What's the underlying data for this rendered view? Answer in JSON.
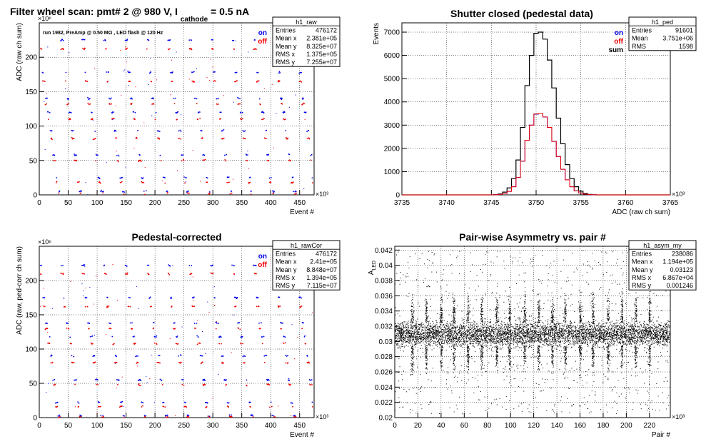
{
  "header": {
    "title_main": "Filter wheel scan: pmt#   2 @   980 V, I",
    "title_sub": "cathode",
    "title_tail": " = 0.5 nA"
  },
  "colors": {
    "on": "#0000ee",
    "off": "#ee0000",
    "sum": "#000000"
  },
  "chart_data": [
    {
      "id": "raw",
      "type": "scatter",
      "title": "",
      "annotation": "run 1982, PreAmp @ 0.50 MΩ , LED flash @  120 Hz",
      "xlabel": "Event #",
      "ylabel": "ADC (raw ch sum)",
      "x_multiplier": "×10³",
      "y_multiplier": "×10⁶",
      "xlim": [
        0,
        475
      ],
      "ylim": [
        0,
        250
      ],
      "xticks": [
        0,
        50,
        100,
        150,
        200,
        250,
        300,
        350,
        400,
        450
      ],
      "yticks": [
        0,
        50,
        100,
        150,
        200
      ],
      "grid": true,
      "legend": [
        "on",
        "off"
      ],
      "stats": {
        "name": "h1_raw",
        "rows": [
          [
            "Entries",
            "476172"
          ],
          [
            "Mean x",
            "2.381e+05"
          ],
          [
            "Mean y",
            "8.325e+07"
          ],
          [
            "RMS x",
            "1.375e+05"
          ],
          [
            "RMS y",
            "7.255e+07"
          ]
        ]
      },
      "levels_on": [
        225,
        178,
        140,
        120,
        93,
        58,
        25,
        5
      ],
      "levels_off": [
        212,
        165,
        132,
        110,
        82,
        50,
        18,
        2
      ]
    },
    {
      "id": "ped",
      "type": "line",
      "title": "Shutter closed (pedestal data)",
      "xlabel": "ADC (raw ch sum)",
      "ylabel": "Events",
      "x_multiplier": "×10³",
      "xlim": [
        3735,
        3765
      ],
      "ylim": [
        0,
        7400
      ],
      "xticks": [
        3735,
        3740,
        3745,
        3750,
        3755,
        3760,
        3765
      ],
      "yticks": [
        0,
        1000,
        2000,
        3000,
        4000,
        5000,
        6000,
        7000
      ],
      "grid": true,
      "legend": [
        "on",
        "off",
        "sum"
      ],
      "stats": {
        "name": "h1_ped",
        "rows": [
          [
            "Entries",
            "91601"
          ],
          [
            "Mean",
            "3.751e+06"
          ],
          [
            "RMS",
            "1598"
          ]
        ]
      },
      "x": [
        3745.5,
        3746.0,
        3746.5,
        3747.0,
        3747.5,
        3748.0,
        3748.5,
        3749.0,
        3749.5,
        3750.0,
        3750.5,
        3751.0,
        3751.5,
        3752.0,
        3752.5,
        3753.0,
        3753.5,
        3754.0,
        3754.5,
        3755.0,
        3755.5,
        3756.0,
        3756.5
      ],
      "series": [
        {
          "name": "sum",
          "values": [
            10,
            40,
            120,
            300,
            700,
            1500,
            2900,
            4700,
            6000,
            6950,
            7000,
            6700,
            5800,
            4600,
            3300,
            2200,
            1300,
            700,
            350,
            160,
            60,
            20,
            5
          ]
        },
        {
          "name": "on",
          "values": [
            5,
            20,
            60,
            150,
            350,
            750,
            1450,
            2350,
            3000,
            3470,
            3500,
            3350,
            2900,
            2300,
            1650,
            1100,
            650,
            350,
            175,
            80,
            30,
            10,
            2
          ]
        },
        {
          "name": "off",
          "values": [
            5,
            20,
            60,
            150,
            350,
            750,
            1450,
            2350,
            3000,
            3480,
            3500,
            3350,
            2900,
            2300,
            1650,
            1100,
            650,
            350,
            175,
            80,
            30,
            10,
            2
          ]
        }
      ]
    },
    {
      "id": "cor",
      "type": "scatter",
      "title": "Pedestal-corrected",
      "xlabel": "Event #",
      "ylabel": "ADC (raw, ped-corr ch sum)",
      "x_multiplier": "×10³",
      "y_multiplier": "×10⁶",
      "xlim": [
        0,
        475
      ],
      "ylim": [
        0,
        250
      ],
      "xticks": [
        0,
        50,
        100,
        150,
        200,
        250,
        300,
        350,
        400,
        450
      ],
      "yticks": [
        0,
        50,
        100,
        150,
        200
      ],
      "grid": true,
      "legend": [
        "on",
        "off"
      ],
      "stats": {
        "name": "h1_rawCor",
        "rows": [
          [
            "Entries",
            "476172"
          ],
          [
            "Mean x",
            "2.41e+05"
          ],
          [
            "Mean y",
            "8.848e+07"
          ],
          [
            "RMS x",
            "1.394e+05"
          ],
          [
            "RMS y",
            "7.115e+07"
          ]
        ]
      },
      "levels_on": [
        222,
        175,
        138,
        118,
        90,
        55,
        22,
        3
      ],
      "levels_off": [
        210,
        162,
        130,
        108,
        80,
        48,
        16,
        1
      ]
    },
    {
      "id": "asym",
      "type": "scatter",
      "title": "Pair-wise Asymmetry vs. pair #",
      "xlabel": "Pair #",
      "ylabel": "A",
      "ylabel_sub": "LED",
      "x_multiplier": "×10³",
      "xlim": [
        0,
        238
      ],
      "ylim": [
        0.02,
        0.0425
      ],
      "xticks": [
        0,
        20,
        40,
        60,
        80,
        100,
        120,
        140,
        160,
        180,
        200,
        220
      ],
      "yticks": [
        0.02,
        0.022,
        0.024,
        0.026,
        0.028,
        0.03,
        0.032,
        0.034,
        0.036,
        0.038,
        0.04,
        0.042
      ],
      "grid": true,
      "stats": {
        "name": "h1_asym_my",
        "rows": [
          [
            "Entries",
            "238086"
          ],
          [
            "Mean x",
            "1.194e+05"
          ],
          [
            "Mean y",
            "0.03123"
          ],
          [
            "RMS x",
            "6.867e+04"
          ],
          [
            "RMS y",
            "0.001246"
          ]
        ]
      },
      "band_center": 0.031,
      "spike_pairs": [
        15,
        27,
        40,
        51,
        63,
        75,
        88,
        99,
        112,
        124,
        136,
        147,
        160,
        171,
        184,
        196,
        208,
        220
      ]
    }
  ]
}
